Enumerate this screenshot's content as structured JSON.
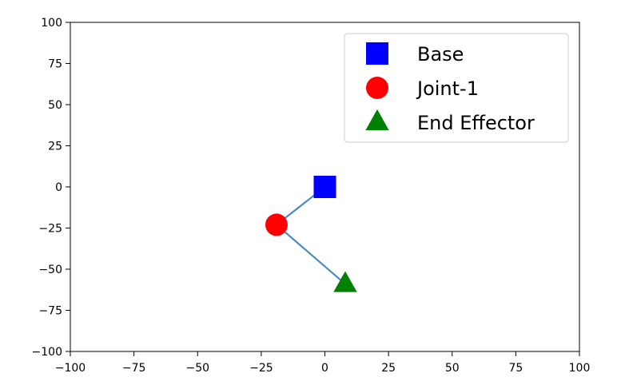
{
  "chart_data": {
    "type": "line",
    "title": "",
    "xlabel": "",
    "ylabel": "",
    "xlim": [
      -100,
      100
    ],
    "ylim": [
      -100,
      100
    ],
    "xticks": [
      "−100",
      "−75",
      "−50",
      "−25",
      "0",
      "25",
      "50",
      "75",
      "100"
    ],
    "yticks": [
      "−100",
      "−75",
      "−50",
      "−25",
      "0",
      "25",
      "50",
      "75",
      "100"
    ],
    "grid": false,
    "legend_position": "top-right",
    "link_color": "#4a8bc2",
    "series": [
      {
        "name": "Base",
        "marker": "square",
        "color": "#0000ff",
        "x": [
          0
        ],
        "y": [
          0
        ]
      },
      {
        "name": "Joint-1",
        "marker": "circle",
        "color": "#ff0000",
        "x": [
          -19
        ],
        "y": [
          -23
        ]
      },
      {
        "name": "End Effector",
        "marker": "triangle",
        "color": "#008000",
        "x": [
          8
        ],
        "y": [
          -59
        ]
      }
    ]
  }
}
